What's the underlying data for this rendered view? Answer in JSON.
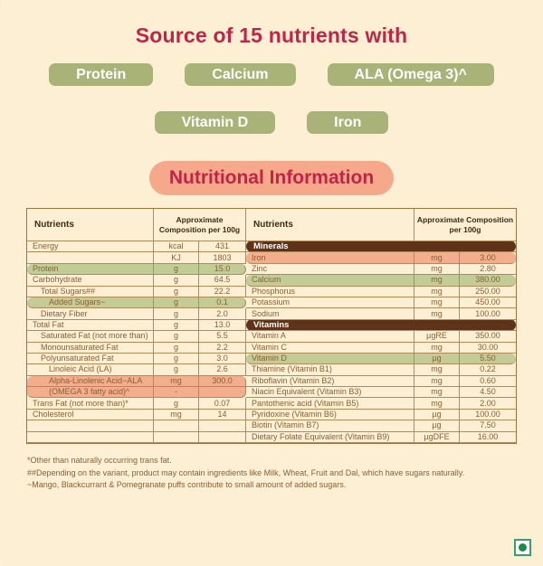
{
  "header": {
    "title": "Source of 15 nutrients with"
  },
  "badges": {
    "row1": [
      "Protein",
      "Calcium",
      "ALA (Omega 3)^"
    ],
    "row2": [
      "Vitamin D",
      "Iron"
    ]
  },
  "section": {
    "title": "Nutritional Information"
  },
  "table": {
    "header": {
      "nutrients": "Nutrients",
      "composition": "Approximate Composition per 100g"
    },
    "rows": [
      {
        "l": [
          "Energy",
          "kcal",
          "431"
        ],
        "r": {
          "section": "Minerals"
        }
      },
      {
        "l": [
          "",
          "KJ",
          "1803"
        ],
        "r": [
          "Iron",
          "mg",
          "3.00"
        ],
        "rh": "salmon"
      },
      {
        "l": [
          "Protein",
          "g",
          "15.0"
        ],
        "lh": "green",
        "r": [
          "Zinc",
          "mg",
          "2.80"
        ]
      },
      {
        "l": [
          "Carbohydrate",
          "g",
          "64.5"
        ],
        "r": [
          "Calcium",
          "mg",
          "380.00"
        ],
        "rh": "green"
      },
      {
        "l": [
          "Total Sugars##",
          "g",
          "22.2"
        ],
        "li": 1,
        "r": [
          "Phosphorus",
          "mg",
          "250.00"
        ]
      },
      {
        "l": [
          "Added Sugars~",
          "g",
          "0.1"
        ],
        "li": 2,
        "lh": "green",
        "r": [
          "Potassium",
          "mg",
          "450.00"
        ]
      },
      {
        "l": [
          "Dietary Fiber",
          "g",
          "2.0"
        ],
        "li": 1,
        "r": [
          "Sodium",
          "mg",
          "100.00"
        ]
      },
      {
        "l": [
          "Total Fat",
          "g",
          "13.0"
        ],
        "r": {
          "section": "Vitamins"
        }
      },
      {
        "l": [
          "Saturated Fat (not more than)",
          "g",
          "5.5"
        ],
        "li": 1,
        "r": [
          "Vitamin A",
          "µgRE",
          "350.00"
        ]
      },
      {
        "l": [
          "Monounsaturated Fat",
          "g",
          "2.2"
        ],
        "li": 1,
        "r": [
          "Vitamin C",
          "mg",
          "30.00"
        ]
      },
      {
        "l": [
          "Polyunsaturated Fat",
          "g",
          "3.0"
        ],
        "li": 1,
        "r": [
          "Vitamin D",
          "µg",
          "5.50"
        ],
        "rh": "green"
      },
      {
        "l": [
          "Linoleic Acid (LA)",
          "g",
          "2.6"
        ],
        "li": 2,
        "r": [
          "Thiamine (Vitamin B1)",
          "mg",
          "0.22"
        ]
      },
      {
        "l": [
          "Alpha-Linolenic Acid−ALA",
          "mg",
          "300.0"
        ],
        "li": 2,
        "lh": "salmon-top",
        "r": [
          "Riboflavin (Vitamin B2)",
          "mg",
          "0.60"
        ]
      },
      {
        "l": [
          "(OMEGA 3 fatty acid)^",
          "-",
          ""
        ],
        "li": 2,
        "lh": "salmon-bottom",
        "r": [
          "Niacin Equivalent (Vitamin B3)",
          "mg",
          "4.50"
        ]
      },
      {
        "l": [
          "Trans Fat (not more than)*",
          "g",
          "0.07"
        ],
        "r": [
          "Pantothenic acid (Vitamin B5)",
          "mg",
          "2.00"
        ]
      },
      {
        "l": [
          "Cholesterol",
          "mg",
          "14"
        ],
        "r": [
          "Pyridoxine (Vitamin B6)",
          "µg",
          "100.00"
        ]
      },
      {
        "l": [
          "",
          "",
          ""
        ],
        "r": [
          "Biotin (Vitamin B7)",
          "µg",
          "7.50"
        ]
      },
      {
        "l": [
          "",
          "",
          ""
        ],
        "r": [
          "Dietary Folate Equivalent (Vitamin B9)",
          "µgDFE",
          "16.00"
        ]
      }
    ]
  },
  "footnotes": [
    "*Other than naturally occurring trans fat.",
    "##Depending on the variant, product may contain ingredients like Milk, Wheat, Fruit and Dal, which have sugars naturally.",
    "~Mango, Blackcurrant & Pomegranate puffs contribute to small amount of added sugars."
  ],
  "icons": {
    "veg": "vegetarian-mark"
  },
  "colors": {
    "background": "#fcefd3",
    "accent_red": "#c22445",
    "badge_olive": "#a9b377",
    "heading_pill": "#f5a88a",
    "highlight_green": "#c3cc96",
    "highlight_salmon": "#f2ae8d",
    "section_brown": "#5e3319",
    "table_border": "#b28a58",
    "text_brown": "#8a5f35",
    "veg_green": "#149048"
  }
}
